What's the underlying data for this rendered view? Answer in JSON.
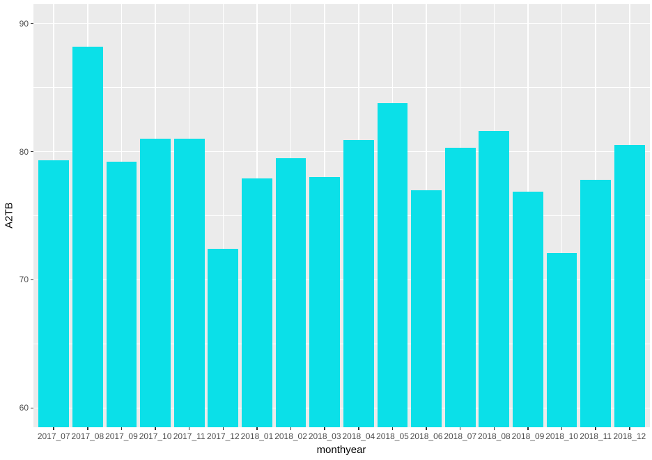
{
  "chart_data": {
    "type": "bar",
    "title": "",
    "xlabel": "monthyear",
    "ylabel": "A2TB",
    "categories": [
      "2017_07",
      "2017_08",
      "2017_09",
      "2017_10",
      "2017_11",
      "2017_12",
      "2018_01",
      "2018_02",
      "2018_03",
      "2018_04",
      "2018_05",
      "2018_06",
      "2018_07",
      "2018_08",
      "2018_09",
      "2018_10",
      "2018_11",
      "2018_12"
    ],
    "values": [
      79.3,
      88.2,
      79.2,
      81.0,
      81.0,
      72.4,
      77.9,
      79.5,
      78.0,
      80.9,
      83.8,
      77.0,
      80.3,
      81.6,
      76.9,
      72.1,
      77.8,
      80.5
    ],
    "ylim": [
      58.5,
      91.5
    ],
    "yticks_major": [
      60,
      70,
      80,
      90
    ],
    "yticks_minor": [
      65,
      75,
      85
    ],
    "grid": true,
    "legend_position": "none",
    "bar_width_fraction": 0.9,
    "colors": {
      "bar_fill": "#0BE0E8",
      "panel_background": "#EBEBEB",
      "gridline": "#FFFFFF",
      "tick_label": "#4D4D4D",
      "axis_title": "#000000",
      "tick_mark": "#333333",
      "outer_background": "#FFFFFF"
    }
  }
}
